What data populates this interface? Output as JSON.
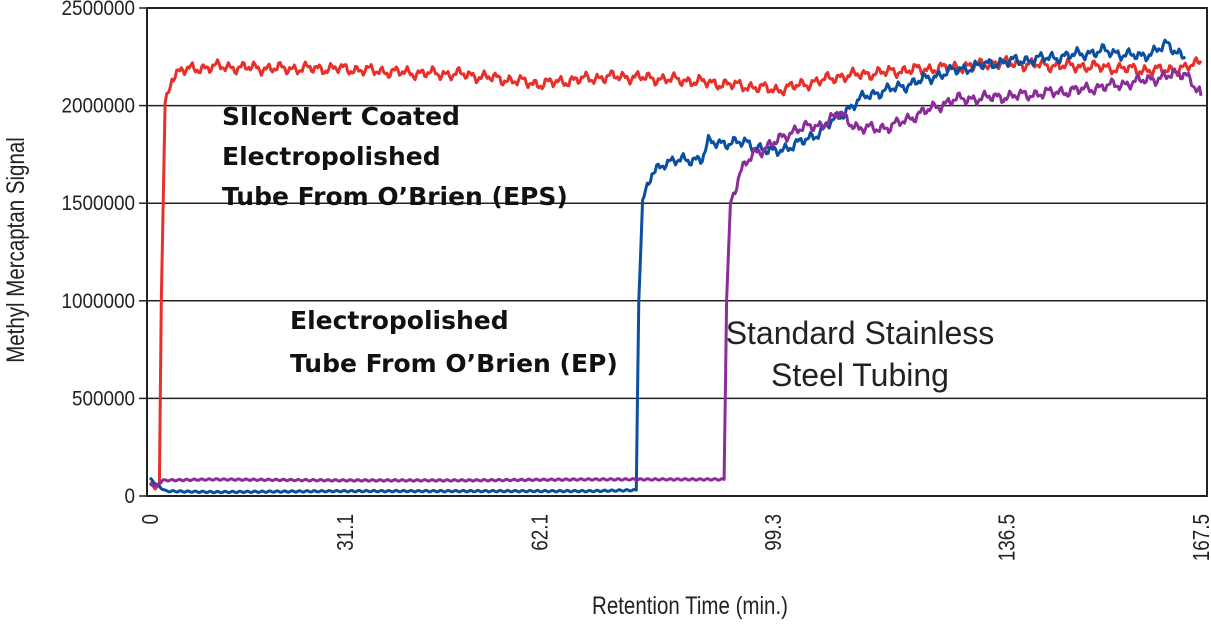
{
  "chart_data": {
    "type": "line",
    "title": "",
    "xlabel": "Retention Time (min.)",
    "ylabel": "Methyl Mercaptan Signal",
    "xlim": [
      0,
      167.5
    ],
    "ylim": [
      0,
      2500000
    ],
    "xticks": [
      "0",
      "31.1",
      "62.1",
      "99.3",
      "136.5",
      "167.5"
    ],
    "xtick_values": [
      0,
      31.1,
      62.1,
      99.3,
      136.5,
      167.5
    ],
    "yticks": [
      "0",
      "500000",
      "1000000",
      "1500000",
      "2000000",
      "2500000"
    ],
    "ytick_values": [
      0,
      500000,
      1000000,
      1500000,
      2000000,
      2500000
    ],
    "grid": "horizontal",
    "annotations": {
      "eps": [
        "SIlcoNert Coated",
        "Electropolished",
        "Tube From O’Brien (EPS)"
      ],
      "ep": [
        "Electropolished",
        "Tube From O’Brien (EP)"
      ],
      "ss": [
        "Standard Stainless",
        "Steel Tubing"
      ]
    },
    "series": [
      {
        "color": "#e8302a",
        "x": [
          0,
          0.8,
          1.5,
          1.8,
          2.4,
          3.5,
          5,
          10,
          20,
          30,
          40,
          50,
          60,
          62,
          70,
          75,
          85,
          95,
          100,
          110,
          120,
          130,
          135,
          140,
          150,
          160,
          165,
          167.5
        ],
        "y": [
          70000,
          40000,
          60000,
          1000000,
          2000000,
          2150000,
          2180000,
          2200000,
          2190000,
          2190000,
          2170000,
          2160000,
          2120000,
          2110000,
          2140000,
          2150000,
          2130000,
          2100000,
          2080000,
          2150000,
          2180000,
          2200000,
          2220000,
          2210000,
          2200000,
          2180000,
          2190000,
          2230000
        ]
      },
      {
        "color": "#0a4fa0",
        "x": [
          0,
          1,
          2.5,
          10,
          30,
          50,
          70,
          77.5,
          77.9,
          78.5,
          80,
          82,
          88,
          89,
          95,
          99,
          103,
          106,
          110,
          114,
          120,
          128,
          135,
          145,
          152,
          158,
          162,
          165
        ],
        "y": [
          90000,
          60000,
          25000,
          20000,
          25000,
          25000,
          25000,
          30000,
          1000000,
          1500000,
          1650000,
          1710000,
          1730000,
          1810000,
          1810000,
          1760000,
          1800000,
          1850000,
          1950000,
          2050000,
          2100000,
          2180000,
          2220000,
          2250000,
          2280000,
          2250000,
          2310000,
          2250000
        ]
      },
      {
        "color": "#8b2d99",
        "x": [
          0,
          1,
          2,
          10,
          30,
          50,
          70,
          85,
          91.5,
          91.9,
          92.5,
          94,
          96,
          99,
          103,
          107,
          110,
          113,
          118,
          122,
          128,
          138,
          148,
          155,
          162,
          165,
          167.5
        ],
        "y": [
          60000,
          50000,
          80000,
          85000,
          80000,
          80000,
          85000,
          85000,
          85000,
          1000000,
          1500000,
          1650000,
          1750000,
          1800000,
          1880000,
          1900000,
          1960000,
          1880000,
          1890000,
          1950000,
          2030000,
          2050000,
          2080000,
          2110000,
          2150000,
          2170000,
          2050000
        ]
      }
    ]
  }
}
